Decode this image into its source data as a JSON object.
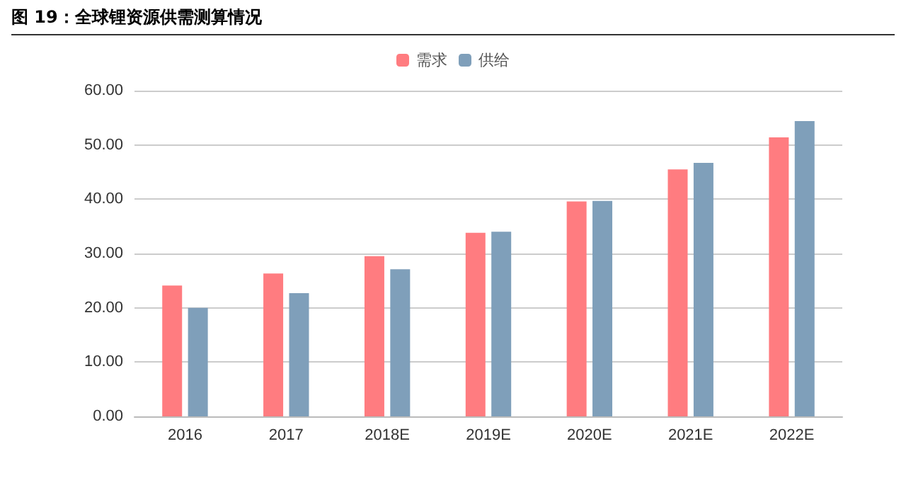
{
  "chart_data": {
    "type": "bar",
    "title": "图 19：全球锂资源供需测算情况",
    "categories": [
      "2016",
      "2017",
      "2018E",
      "2019E",
      "2020E",
      "2021E",
      "2022E"
    ],
    "series": [
      {
        "name": "需求",
        "color": "#ff7c80",
        "values": [
          24.1,
          26.3,
          29.5,
          33.8,
          39.6,
          45.5,
          51.4
        ]
      },
      {
        "name": "供给",
        "color": "#7f9fba",
        "values": [
          20.0,
          22.7,
          27.1,
          34.0,
          39.7,
          46.7,
          54.4
        ]
      }
    ],
    "ylim": [
      0,
      60
    ],
    "yticks": [
      {
        "value": 0,
        "label": "0.00"
      },
      {
        "value": 10,
        "label": "10.00"
      },
      {
        "value": 20,
        "label": "20.00"
      },
      {
        "value": 30,
        "label": "30.00"
      },
      {
        "value": 40,
        "label": "40.00"
      },
      {
        "value": 50,
        "label": "50.00"
      },
      {
        "value": 60,
        "label": "60.00"
      }
    ],
    "grid": "y",
    "legend": "top"
  }
}
